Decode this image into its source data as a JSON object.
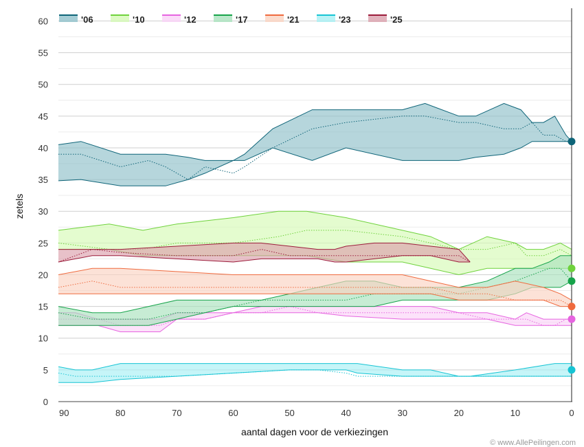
{
  "chart_data": {
    "type": "area",
    "xlabel": "aantal dagen voor de verkiezingen",
    "ylabel": "zetels",
    "xlim": [
      91,
      0
    ],
    "ylim": [
      0,
      62
    ],
    "x_ticks": [
      90,
      80,
      70,
      60,
      50,
      40,
      30,
      20,
      10,
      0
    ],
    "y_ticks": [
      0,
      5,
      10,
      15,
      20,
      25,
      30,
      35,
      40,
      45,
      50,
      55,
      60
    ],
    "grid": true,
    "legend_position": "top",
    "credit": "© www.AllePeilingen.com",
    "series": [
      {
        "name": "'06",
        "color": "#0e6478",
        "fill": "#8fc0ca",
        "x": [
          91,
          87,
          80,
          75,
          72,
          68,
          65,
          60,
          58,
          53,
          46,
          40,
          30,
          26,
          20,
          17,
          12,
          9,
          7,
          5,
          3,
          1,
          0
        ],
        "high": [
          40.5,
          41,
          39,
          39,
          39,
          38.5,
          38,
          38,
          39,
          43,
          46,
          46,
          46,
          47,
          45,
          45,
          47,
          46,
          44,
          44,
          45,
          42,
          41
        ],
        "mid": [
          39,
          39,
          37,
          38,
          37,
          35,
          37,
          36,
          37,
          40,
          43,
          44,
          45,
          45,
          44,
          44,
          43,
          43,
          44,
          42,
          42,
          41,
          41
        ],
        "low": [
          34.8,
          35,
          34,
          34,
          34,
          35,
          36,
          38,
          38,
          40,
          38,
          40,
          38,
          38,
          38,
          38.5,
          39,
          40,
          41,
          41,
          41,
          41,
          41
        ],
        "final": 41
      },
      {
        "name": "'10",
        "color": "#6fd23c",
        "fill": "#d5fab5",
        "x": [
          91,
          82,
          76,
          70,
          60,
          52,
          47,
          40,
          30,
          25,
          20,
          15,
          10,
          8,
          5,
          2,
          0
        ],
        "high": [
          27,
          28,
          27,
          28,
          29,
          30,
          30,
          29,
          27,
          26,
          24,
          26,
          25,
          24,
          24,
          25,
          24
        ],
        "mid": [
          25,
          24,
          24,
          25,
          25,
          26,
          27,
          27,
          26,
          25,
          24,
          24,
          25,
          23,
          23,
          24,
          23
        ],
        "low": [
          24,
          24,
          23,
          23,
          23,
          23,
          23,
          22,
          22,
          21,
          20,
          21,
          21,
          21,
          21,
          21,
          21
        ],
        "final": 21
      },
      {
        "name": "'12",
        "color": "#e664e0",
        "fill": "#fad2f8",
        "x": [
          91,
          88,
          84,
          80,
          73,
          70,
          65,
          60,
          55,
          50,
          45,
          40,
          30,
          25,
          20,
          15,
          10,
          8,
          5,
          3,
          1,
          0
        ],
        "high": [
          14,
          14,
          13,
          13,
          13,
          14,
          14,
          14,
          15,
          15,
          15,
          15,
          15,
          15,
          14,
          14,
          13,
          14,
          13,
          13,
          13,
          13
        ],
        "mid": [
          13,
          13,
          13,
          12,
          12,
          13,
          13,
          14,
          14,
          15,
          14,
          14,
          14,
          14,
          14,
          13,
          13,
          13,
          12,
          12,
          13,
          13
        ],
        "low": [
          12,
          12,
          12,
          11,
          11,
          13,
          13,
          14,
          14,
          14,
          14,
          13.5,
          13,
          13,
          13,
          13,
          12,
          12,
          12,
          12,
          12,
          12
        ],
        "final": 13
      },
      {
        "name": "'17",
        "color": "#16a34a",
        "fill": "#a9e2bd",
        "x": [
          91,
          85,
          80,
          75,
          70,
          65,
          60,
          55,
          50,
          45,
          40,
          35,
          30,
          25,
          20,
          15,
          10,
          7,
          4,
          2,
          0
        ],
        "high": [
          15,
          14,
          14,
          15,
          16,
          16,
          16,
          16,
          17,
          18,
          19,
          19,
          18,
          18,
          18,
          19,
          21,
          21,
          22,
          23,
          23
        ],
        "mid": [
          14,
          13,
          13,
          13,
          14,
          14,
          15,
          16,
          16,
          16,
          16,
          17,
          17,
          17,
          17,
          18,
          19,
          20,
          21,
          21,
          19
        ],
        "low": [
          12,
          12,
          12,
          12,
          13,
          14,
          15,
          15,
          15,
          15,
          15,
          15,
          16,
          16,
          16,
          16,
          17,
          18,
          18,
          18,
          19
        ],
        "final": 19
      },
      {
        "name": "'21",
        "color": "#ef6a3e",
        "fill": "#fbd3c1",
        "x": [
          91,
          85,
          80,
          70,
          60,
          50,
          40,
          30,
          25,
          20,
          15,
          10,
          5,
          2,
          0
        ],
        "high": [
          20,
          21,
          21,
          20.5,
          20,
          20,
          20,
          20,
          19,
          18,
          18,
          19,
          18,
          17,
          16
        ],
        "mid": [
          18,
          19,
          18,
          18,
          18,
          18,
          18,
          18,
          18,
          17,
          17,
          16,
          16,
          16,
          15
        ],
        "low": [
          17,
          17,
          17,
          17,
          17,
          17,
          17,
          17,
          17,
          16,
          16,
          16,
          16,
          15,
          15
        ],
        "final": 15
      },
      {
        "name": "'23",
        "color": "#16c4d4",
        "fill": "#a8f0f4",
        "x": [
          91,
          88,
          85,
          80,
          70,
          60,
          50,
          45,
          40,
          38,
          30,
          25,
          20,
          18,
          10,
          3,
          0
        ],
        "high": [
          5.5,
          5,
          5,
          6,
          6,
          6,
          6,
          6,
          6,
          6,
          5,
          5,
          4,
          4,
          5,
          6,
          6
        ],
        "mid": [
          4.5,
          4,
          4,
          4,
          4,
          4.5,
          5,
          5,
          4.5,
          4,
          4,
          4,
          4,
          4,
          4,
          4,
          4
        ],
        "low": [
          3,
          3,
          3,
          3.5,
          4,
          4.5,
          5,
          5,
          5,
          4.5,
          4,
          4,
          4,
          4,
          4,
          4,
          4
        ],
        "final": 5
      },
      {
        "name": "'25",
        "color": "#9b1b3a",
        "fill": "#dba0ac",
        "x": [
          91,
          85,
          80,
          70,
          60,
          55,
          50,
          45,
          42,
          40,
          35,
          30,
          25,
          20,
          18
        ],
        "high": [
          24,
          24,
          24,
          24.5,
          25,
          25,
          24.5,
          24,
          24,
          24.5,
          25,
          25,
          24.5,
          24,
          22
        ],
        "mid": [
          22,
          24,
          23.5,
          23,
          23,
          24,
          23,
          23,
          23,
          23,
          23,
          23,
          23,
          23,
          22
        ],
        "low": [
          22,
          23,
          23,
          22.5,
          22,
          22.5,
          22.5,
          22.5,
          22,
          22,
          22.5,
          23,
          23,
          22,
          22
        ]
      }
    ]
  }
}
